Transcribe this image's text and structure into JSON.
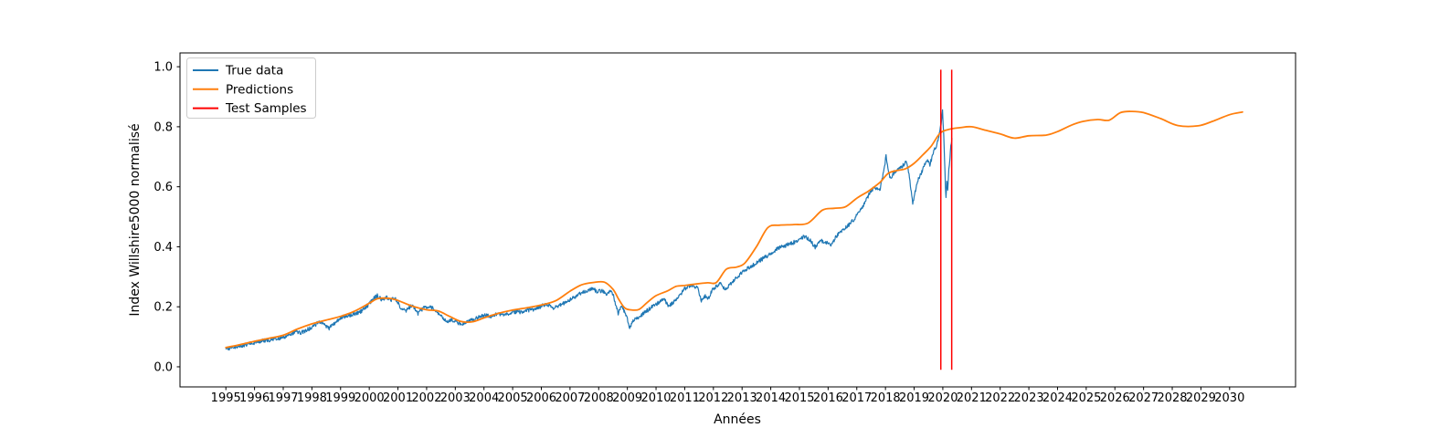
{
  "chart_data": {
    "type": "line",
    "title": "",
    "xlabel": "Années",
    "ylabel": "Index Willshire5000 normalisé",
    "xlim": [
      1993.4,
      2032.3
    ],
    "ylim": [
      -0.067,
      1.046
    ],
    "grid": false,
    "x_ticks": [
      1995,
      1996,
      1997,
      1998,
      1999,
      2000,
      2001,
      2002,
      2003,
      2004,
      2005,
      2006,
      2007,
      2008,
      2009,
      2010,
      2011,
      2012,
      2013,
      2014,
      2015,
      2016,
      2017,
      2018,
      2019,
      2020,
      2021,
      2022,
      2023,
      2024,
      2025,
      2026,
      2027,
      2028,
      2029,
      2030
    ],
    "y_ticks": [
      0.0,
      0.2,
      0.4,
      0.6,
      0.8,
      1.0
    ],
    "y_tick_labels": [
      "0.0",
      "0.2",
      "0.4",
      "0.6",
      "0.8",
      "1.0"
    ],
    "legend": {
      "position": "upper-left",
      "entries": [
        {
          "label": "True data",
          "color": "#1f77b4"
        },
        {
          "label": "Predictions",
          "color": "#ff7f0e"
        },
        {
          "label": "Test Samples",
          "color": "#ff0000"
        }
      ]
    },
    "series": [
      {
        "name": "True data",
        "style": "jagged",
        "color": "#1f77b4",
        "points": [
          [
            1995.0,
            0.058
          ],
          [
            1995.25,
            0.064
          ],
          [
            1995.5,
            0.07
          ],
          [
            1995.75,
            0.075
          ],
          [
            1996.0,
            0.08
          ],
          [
            1996.3,
            0.087
          ],
          [
            1996.6,
            0.09
          ],
          [
            1996.8,
            0.094
          ],
          [
            1997.0,
            0.098
          ],
          [
            1997.25,
            0.108
          ],
          [
            1997.45,
            0.118
          ],
          [
            1997.6,
            0.112
          ],
          [
            1997.8,
            0.122
          ],
          [
            1998.0,
            0.131
          ],
          [
            1998.15,
            0.142
          ],
          [
            1998.3,
            0.152
          ],
          [
            1998.45,
            0.14
          ],
          [
            1998.6,
            0.128
          ],
          [
            1998.8,
            0.146
          ],
          [
            1999.0,
            0.164
          ],
          [
            1999.25,
            0.17
          ],
          [
            1999.5,
            0.176
          ],
          [
            1999.7,
            0.184
          ],
          [
            1999.85,
            0.196
          ],
          [
            2000.0,
            0.21
          ],
          [
            2000.15,
            0.228
          ],
          [
            2000.28,
            0.237
          ],
          [
            2000.45,
            0.222
          ],
          [
            2000.6,
            0.231
          ],
          [
            2000.75,
            0.222
          ],
          [
            2000.9,
            0.229
          ],
          [
            2001.1,
            0.196
          ],
          [
            2001.3,
            0.188
          ],
          [
            2001.5,
            0.206
          ],
          [
            2001.7,
            0.178
          ],
          [
            2001.9,
            0.198
          ],
          [
            2002.1,
            0.201
          ],
          [
            2002.3,
            0.191
          ],
          [
            2002.5,
            0.168
          ],
          [
            2002.7,
            0.148
          ],
          [
            2002.85,
            0.158
          ],
          [
            2003.0,
            0.15
          ],
          [
            2003.2,
            0.141
          ],
          [
            2003.4,
            0.151
          ],
          [
            2003.65,
            0.158
          ],
          [
            2003.85,
            0.166
          ],
          [
            2004.05,
            0.173
          ],
          [
            2004.25,
            0.168
          ],
          [
            2004.5,
            0.176
          ],
          [
            2004.7,
            0.172
          ],
          [
            2004.9,
            0.18
          ],
          [
            2005.1,
            0.184
          ],
          [
            2005.3,
            0.181
          ],
          [
            2005.5,
            0.188
          ],
          [
            2005.75,
            0.192
          ],
          [
            2006.0,
            0.202
          ],
          [
            2006.2,
            0.21
          ],
          [
            2006.4,
            0.196
          ],
          [
            2006.6,
            0.204
          ],
          [
            2006.8,
            0.212
          ],
          [
            2007.0,
            0.224
          ],
          [
            2007.2,
            0.235
          ],
          [
            2007.4,
            0.248
          ],
          [
            2007.6,
            0.255
          ],
          [
            2007.8,
            0.26
          ],
          [
            2007.95,
            0.25
          ],
          [
            2008.1,
            0.254
          ],
          [
            2008.25,
            0.242
          ],
          [
            2008.4,
            0.25
          ],
          [
            2008.5,
            0.244
          ],
          [
            2008.6,
            0.205
          ],
          [
            2008.68,
            0.178
          ],
          [
            2008.78,
            0.205
          ],
          [
            2008.88,
            0.188
          ],
          [
            2008.98,
            0.166
          ],
          [
            2009.08,
            0.131
          ],
          [
            2009.2,
            0.152
          ],
          [
            2009.35,
            0.163
          ],
          [
            2009.5,
            0.172
          ],
          [
            2009.7,
            0.188
          ],
          [
            2009.9,
            0.202
          ],
          [
            2010.1,
            0.215
          ],
          [
            2010.3,
            0.228
          ],
          [
            2010.42,
            0.2
          ],
          [
            2010.55,
            0.212
          ],
          [
            2010.75,
            0.226
          ],
          [
            2010.95,
            0.255
          ],
          [
            2011.1,
            0.268
          ],
          [
            2011.3,
            0.272
          ],
          [
            2011.45,
            0.262
          ],
          [
            2011.58,
            0.218
          ],
          [
            2011.7,
            0.236
          ],
          [
            2011.8,
            0.223
          ],
          [
            2011.95,
            0.255
          ],
          [
            2012.1,
            0.268
          ],
          [
            2012.25,
            0.282
          ],
          [
            2012.4,
            0.258
          ],
          [
            2012.55,
            0.272
          ],
          [
            2012.7,
            0.285
          ],
          [
            2012.85,
            0.3
          ],
          [
            2013.0,
            0.316
          ],
          [
            2013.25,
            0.331
          ],
          [
            2013.5,
            0.346
          ],
          [
            2013.75,
            0.362
          ],
          [
            2014.0,
            0.377
          ],
          [
            2014.3,
            0.398
          ],
          [
            2014.55,
            0.405
          ],
          [
            2014.75,
            0.412
          ],
          [
            2015.0,
            0.425
          ],
          [
            2015.15,
            0.434
          ],
          [
            2015.35,
            0.425
          ],
          [
            2015.55,
            0.398
          ],
          [
            2015.75,
            0.42
          ],
          [
            2015.95,
            0.413
          ],
          [
            2016.1,
            0.405
          ],
          [
            2016.3,
            0.437
          ],
          [
            2016.5,
            0.455
          ],
          [
            2016.7,
            0.47
          ],
          [
            2016.9,
            0.492
          ],
          [
            2017.1,
            0.515
          ],
          [
            2017.3,
            0.55
          ],
          [
            2017.5,
            0.588
          ],
          [
            2017.65,
            0.598
          ],
          [
            2017.8,
            0.588
          ],
          [
            2017.95,
            0.655
          ],
          [
            2018.02,
            0.705
          ],
          [
            2018.1,
            0.65
          ],
          [
            2018.18,
            0.625
          ],
          [
            2018.3,
            0.648
          ],
          [
            2018.45,
            0.66
          ],
          [
            2018.6,
            0.67
          ],
          [
            2018.72,
            0.682
          ],
          [
            2018.82,
            0.645
          ],
          [
            2018.95,
            0.545
          ],
          [
            2019.05,
            0.59
          ],
          [
            2019.15,
            0.625
          ],
          [
            2019.3,
            0.658
          ],
          [
            2019.45,
            0.69
          ],
          [
            2019.55,
            0.672
          ],
          [
            2019.65,
            0.71
          ],
          [
            2019.78,
            0.738
          ],
          [
            2019.88,
            0.775
          ],
          [
            2019.94,
            0.81
          ],
          [
            2019.99,
            0.856
          ],
          [
            2020.03,
            0.78
          ],
          [
            2020.06,
            0.69
          ],
          [
            2020.09,
            0.6
          ],
          [
            2020.11,
            0.562
          ],
          [
            2020.14,
            0.618
          ],
          [
            2020.17,
            0.588
          ],
          [
            2020.21,
            0.655
          ],
          [
            2020.25,
            0.695
          ],
          [
            2020.28,
            0.735
          ],
          [
            2020.32,
            0.762
          ]
        ]
      },
      {
        "name": "Predictions",
        "style": "smooth",
        "color": "#ff7f0e",
        "points": [
          [
            1995.0,
            0.064
          ],
          [
            1995.5,
            0.074
          ],
          [
            1996.0,
            0.085
          ],
          [
            1996.5,
            0.095
          ],
          [
            1997.0,
            0.105
          ],
          [
            1997.5,
            0.126
          ],
          [
            1998.0,
            0.143
          ],
          [
            1998.5,
            0.156
          ],
          [
            1999.0,
            0.168
          ],
          [
            1999.5,
            0.186
          ],
          [
            2000.0,
            0.212
          ],
          [
            2000.3,
            0.227
          ],
          [
            2000.7,
            0.228
          ],
          [
            2001.0,
            0.221
          ],
          [
            2001.5,
            0.202
          ],
          [
            2002.0,
            0.19
          ],
          [
            2002.4,
            0.186
          ],
          [
            2002.8,
            0.168
          ],
          [
            2003.2,
            0.151
          ],
          [
            2003.6,
            0.15
          ],
          [
            2004.0,
            0.163
          ],
          [
            2004.5,
            0.178
          ],
          [
            2005.0,
            0.189
          ],
          [
            2005.5,
            0.197
          ],
          [
            2006.0,
            0.206
          ],
          [
            2006.5,
            0.22
          ],
          [
            2007.0,
            0.252
          ],
          [
            2007.4,
            0.273
          ],
          [
            2007.8,
            0.281
          ],
          [
            2008.2,
            0.282
          ],
          [
            2008.5,
            0.258
          ],
          [
            2008.7,
            0.225
          ],
          [
            2008.9,
            0.197
          ],
          [
            2009.1,
            0.19
          ],
          [
            2009.4,
            0.191
          ],
          [
            2009.7,
            0.215
          ],
          [
            2010.0,
            0.237
          ],
          [
            2010.4,
            0.253
          ],
          [
            2010.7,
            0.268
          ],
          [
            2011.0,
            0.271
          ],
          [
            2011.4,
            0.276
          ],
          [
            2011.8,
            0.28
          ],
          [
            2012.1,
            0.281
          ],
          [
            2012.45,
            0.325
          ],
          [
            2012.8,
            0.332
          ],
          [
            2013.1,
            0.346
          ],
          [
            2013.5,
            0.4
          ],
          [
            2013.9,
            0.464
          ],
          [
            2014.3,
            0.472
          ],
          [
            2014.8,
            0.474
          ],
          [
            2015.3,
            0.479
          ],
          [
            2015.8,
            0.522
          ],
          [
            2016.2,
            0.528
          ],
          [
            2016.6,
            0.533
          ],
          [
            2017.0,
            0.562
          ],
          [
            2017.4,
            0.585
          ],
          [
            2017.8,
            0.614
          ],
          [
            2018.1,
            0.645
          ],
          [
            2018.4,
            0.654
          ],
          [
            2018.7,
            0.66
          ],
          [
            2019.0,
            0.678
          ],
          [
            2019.3,
            0.706
          ],
          [
            2019.6,
            0.736
          ],
          [
            2019.9,
            0.778
          ],
          [
            2020.2,
            0.791
          ],
          [
            2020.6,
            0.797
          ],
          [
            2021.0,
            0.8
          ],
          [
            2021.5,
            0.788
          ],
          [
            2022.0,
            0.776
          ],
          [
            2022.5,
            0.762
          ],
          [
            2023.0,
            0.77
          ],
          [
            2023.6,
            0.772
          ],
          [
            2024.0,
            0.784
          ],
          [
            2024.5,
            0.806
          ],
          [
            2024.9,
            0.818
          ],
          [
            2025.4,
            0.824
          ],
          [
            2025.8,
            0.822
          ],
          [
            2026.2,
            0.847
          ],
          [
            2026.6,
            0.851
          ],
          [
            2027.0,
            0.847
          ],
          [
            2027.6,
            0.827
          ],
          [
            2028.2,
            0.804
          ],
          [
            2028.9,
            0.803
          ],
          [
            2029.4,
            0.818
          ],
          [
            2030.0,
            0.84
          ],
          [
            2030.45,
            0.849
          ]
        ]
      },
      {
        "name": "Test Samples",
        "style": "vlines",
        "color": "#ff0000",
        "lines": [
          {
            "x": 2019.93,
            "ymin": -0.01,
            "ymax": 0.99
          },
          {
            "x": 2020.31,
            "ymin": -0.01,
            "ymax": 0.99
          }
        ]
      }
    ]
  }
}
